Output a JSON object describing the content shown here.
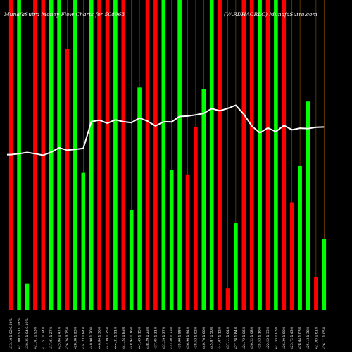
{
  "chart_data": {
    "type": "bar",
    "title_left": "MunafaSutra Money Flow Charts for 508963",
    "title_right": "(VARDHACRLC) MunafaSutra.com",
    "colors": {
      "background": "#000000",
      "up": "#00ff00",
      "down": "#ff0000",
      "line": "#ffffff",
      "grid": "#b06a00"
    },
    "ylim": [
      0,
      100
    ],
    "bars": [
      {
        "label": "413.10 1.02 0.06%",
        "color": "red",
        "value": 100
      },
      {
        "label": "421.00 1.91 0.06%",
        "color": "green",
        "value": 100
      },
      {
        "label": "430.35 1.04 0.19%",
        "color": "green",
        "value": 8.7
      },
      {
        "label": "421.61 1.93%",
        "color": "red",
        "value": 100
      },
      {
        "label": "411.51 1.74%",
        "color": "red",
        "value": 100
      },
      {
        "label": "417.01 1.27%",
        "color": "green",
        "value": 100
      },
      {
        "label": "425.04 1.47%",
        "color": "green",
        "value": 100
      },
      {
        "label": "426.26 0.75%",
        "color": "red",
        "value": 84.3
      },
      {
        "label": "428.38 1.23%",
        "color": "green",
        "value": 100
      },
      {
        "label": "434.23 1.84%",
        "color": "green",
        "value": 44.3
      },
      {
        "label": "440.90 1.20%",
        "color": "green",
        "value": 100
      },
      {
        "label": "446.84 1.36%",
        "color": "red",
        "value": 100
      },
      {
        "label": "443.39 1.35%",
        "color": "red",
        "value": 100
      },
      {
        "label": "444.31 1.91%",
        "color": "green",
        "value": 100
      },
      {
        "label": "441.24 1.83%",
        "color": "red",
        "value": 100
      },
      {
        "label": "448.94 1.16%",
        "color": "green",
        "value": 32.2
      },
      {
        "label": "441.49 1.15%",
        "color": "green",
        "value": 71.8
      },
      {
        "label": "438.29 1.23%",
        "color": "red",
        "value": 100
      },
      {
        "label": "437.05 1.31%",
        "color": "red",
        "value": 100
      },
      {
        "label": "431.29 1.37%",
        "color": "green",
        "value": 100
      },
      {
        "label": "433.48 1.23%",
        "color": "green",
        "value": 45.2
      },
      {
        "label": "435.90 1.58%",
        "color": "green",
        "value": 100
      },
      {
        "label": "436.96 1.94%",
        "color": "red",
        "value": 43.8
      },
      {
        "label": "438.52 1.92%",
        "color": "red",
        "value": 59.2
      },
      {
        "label": "440.70 1.60%",
        "color": "green",
        "value": 71.2
      },
      {
        "label": "445.07 1.50%",
        "color": "green",
        "value": 100
      },
      {
        "label": "444.07 1.12%",
        "color": "red",
        "value": 100
      },
      {
        "label": "437.11 1.64%",
        "color": "red",
        "value": 7.2
      },
      {
        "label": "427.28 1.84%",
        "color": "green",
        "value": 28.1
      },
      {
        "label": "424.72 1.06%",
        "color": "red",
        "value": 100
      },
      {
        "label": "430.22 1.08%",
        "color": "red",
        "value": 100
      },
      {
        "label": "425.52 1.10%",
        "color": "green",
        "value": 100
      },
      {
        "label": "422.52 1.33%",
        "color": "red",
        "value": 100
      },
      {
        "label": "427.55 1.03%",
        "color": "green",
        "value": 100
      },
      {
        "label": "426.29 1.80%",
        "color": "red",
        "value": 100
      },
      {
        "label": "425.72 1.43%",
        "color": "red",
        "value": 34.8
      },
      {
        "label": "428.04 1.03%",
        "color": "green",
        "value": 46.5
      },
      {
        "label": "425.13 1.38%",
        "color": "green",
        "value": 67.3
      },
      {
        "label": "427.05 1.61%",
        "color": "red",
        "value": 10.7
      },
      {
        "label": "426.11 1.05%",
        "color": "green",
        "value": 23.0
      }
    ],
    "price_line": [
      50.2,
      50.5,
      50.9,
      50.5,
      50.0,
      51.0,
      52.4,
      51.6,
      51.9,
      52.2,
      60.8,
      61.3,
      60.3,
      61.4,
      60.8,
      60.5,
      62.0,
      61.0,
      59.4,
      60.8,
      60.7,
      62.5,
      62.6,
      63.0,
      63.5,
      65.0,
      64.3,
      65.1,
      66.1,
      63.2,
      59.4,
      57.2,
      58.8,
      57.6,
      59.6,
      58.2,
      58.7,
      58.6,
      59.0,
      59.1
    ]
  }
}
